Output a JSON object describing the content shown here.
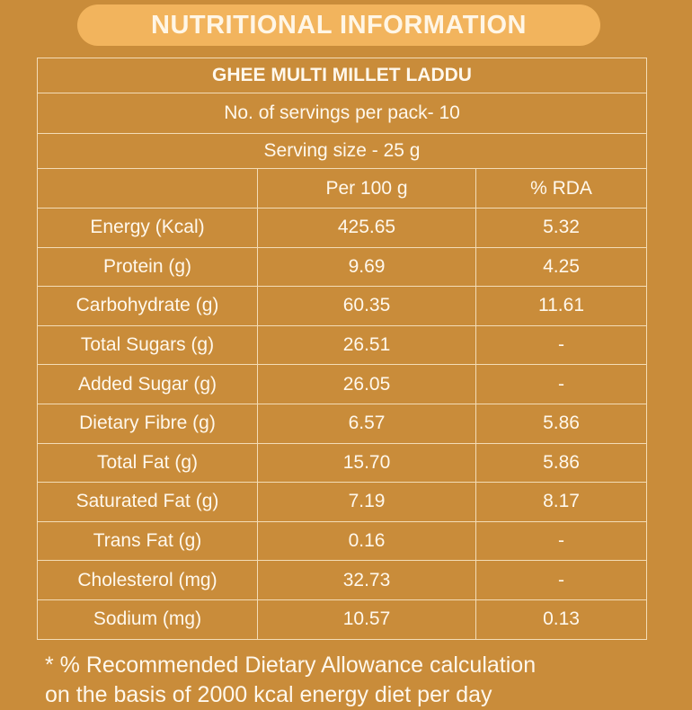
{
  "header": {
    "title": "NUTRITIONAL INFORMATION"
  },
  "table": {
    "product_name": "GHEE MULTI MILLET LADDU",
    "servings_per_pack": "No. of servings per pack- 10",
    "serving_size": "Serving size - 25 g",
    "columns": {
      "blank": "",
      "per_100g": "Per 100 g",
      "rda": "% RDA"
    },
    "rows": [
      {
        "nutrient": "Energy (Kcal)",
        "per_100g": "425.65",
        "rda": "5.32"
      },
      {
        "nutrient": "Protein (g)",
        "per_100g": "9.69",
        "rda": "4.25"
      },
      {
        "nutrient": "Carbohydrate (g)",
        "per_100g": "60.35",
        "rda": "11.61"
      },
      {
        "nutrient": "Total Sugars (g)",
        "per_100g": "26.51",
        "rda": "-"
      },
      {
        "nutrient": "Added Sugar (g)",
        "per_100g": "26.05",
        "rda": "-"
      },
      {
        "nutrient": "Dietary Fibre (g)",
        "per_100g": "6.57",
        "rda": "5.86"
      },
      {
        "nutrient": "Total Fat (g)",
        "per_100g": "15.70",
        "rda": "5.86"
      },
      {
        "nutrient": "Saturated Fat (g)",
        "per_100g": "7.19",
        "rda": "8.17"
      },
      {
        "nutrient": "Trans Fat (g)",
        "per_100g": "0.16",
        "rda": "-"
      },
      {
        "nutrient": "Cholesterol (mg)",
        "per_100g": "32.73",
        "rda": "-"
      },
      {
        "nutrient": "Sodium (mg)",
        "per_100g": "10.57",
        "rda": "0.13"
      }
    ]
  },
  "footnote": {
    "line1": "* % Recommended Dietary Allowance calculation",
    "line2": "on the basis of 2000 kcal energy diet per day"
  },
  "colors": {
    "background": "#c98c3a",
    "title_pill": "#f2b45d",
    "text": "#fff8ec",
    "table_border": "#f3dcb6"
  }
}
